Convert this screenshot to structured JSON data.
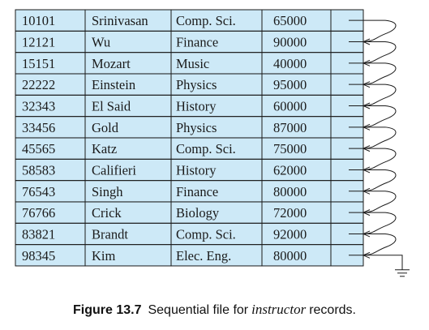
{
  "colors": {
    "cell_fill": "#cde9f7",
    "grid_line": "#1a1a1a",
    "pointer_line": "#1a1a1a"
  },
  "pointer_end_symbol": "ground-icon",
  "records": [
    {
      "id": "10101",
      "name": "Srinivasan",
      "dept": "Comp. Sci.",
      "salary": "65000"
    },
    {
      "id": "12121",
      "name": "Wu",
      "dept": "Finance",
      "salary": "90000"
    },
    {
      "id": "15151",
      "name": "Mozart",
      "dept": "Music",
      "salary": "40000"
    },
    {
      "id": "22222",
      "name": "Einstein",
      "dept": "Physics",
      "salary": "95000"
    },
    {
      "id": "32343",
      "name": "El Said",
      "dept": "History",
      "salary": "60000"
    },
    {
      "id": "33456",
      "name": "Gold",
      "dept": "Physics",
      "salary": "87000"
    },
    {
      "id": "45565",
      "name": "Katz",
      "dept": "Comp. Sci.",
      "salary": "75000"
    },
    {
      "id": "58583",
      "name": "Califieri",
      "dept": "History",
      "salary": "62000"
    },
    {
      "id": "76543",
      "name": "Singh",
      "dept": "Finance",
      "salary": "80000"
    },
    {
      "id": "76766",
      "name": "Crick",
      "dept": "Biology",
      "salary": "72000"
    },
    {
      "id": "83821",
      "name": "Brandt",
      "dept": "Comp. Sci.",
      "salary": "92000"
    },
    {
      "id": "98345",
      "name": "Kim",
      "dept": "Elec. Eng.",
      "salary": "80000"
    }
  ],
  "caption": {
    "label": "Figure 13.7",
    "text_before": "Sequential file for",
    "italic_word": "instructor",
    "text_after": "records."
  }
}
